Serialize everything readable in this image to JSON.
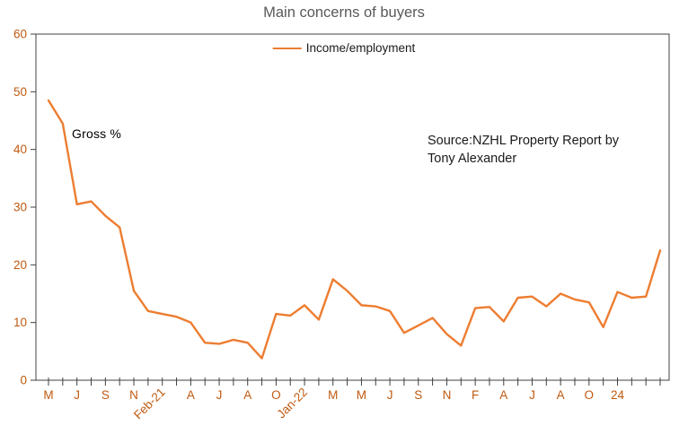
{
  "chart_data": {
    "type": "line",
    "title": "Main concerns of buyers",
    "grid": false,
    "legend_position": "top-center",
    "annotations": {
      "gross": "Gross %",
      "source_line1": "Source:NZHL  Property Report by",
      "source_line2": "Tony Alexander"
    },
    "y_axis": {
      "min": 0,
      "max": 60,
      "tick_step": 10
    },
    "x_tick_labels": [
      "M",
      "",
      "J",
      "",
      "S",
      "",
      "N",
      "",
      "Feb-21",
      "",
      "A",
      "",
      "J",
      "",
      "A",
      "",
      "O",
      "",
      "Jan-22",
      "",
      "M",
      "",
      "M",
      "",
      "J",
      "",
      "S",
      "",
      "N",
      "",
      "F",
      "",
      "A",
      "",
      "J",
      "",
      "A",
      "",
      "O",
      "",
      "24",
      "",
      "",
      ""
    ],
    "series": [
      {
        "name": "Income/employment",
        "color": "#ED7D31",
        "values": [
          48.5,
          44.5,
          30.5,
          31,
          28.5,
          26.5,
          15.5,
          12,
          11.5,
          11,
          10,
          6.5,
          6.3,
          7,
          6.5,
          3.8,
          11.5,
          11.2,
          13,
          10.5,
          17.5,
          15.5,
          13,
          12.8,
          12,
          8.2,
          9.5,
          10.8,
          8,
          6,
          12.5,
          12.7,
          10.2,
          14.3,
          14.5,
          12.8,
          15,
          14,
          13.5,
          9.2,
          15.3,
          14.3,
          14.5,
          22.5
        ]
      }
    ],
    "colors": {
      "line": "#ED7D31",
      "title_text": "#595959",
      "axis_labels": "#C05A11",
      "axis_lines": "#404040",
      "annotation_text": "#000000"
    }
  }
}
